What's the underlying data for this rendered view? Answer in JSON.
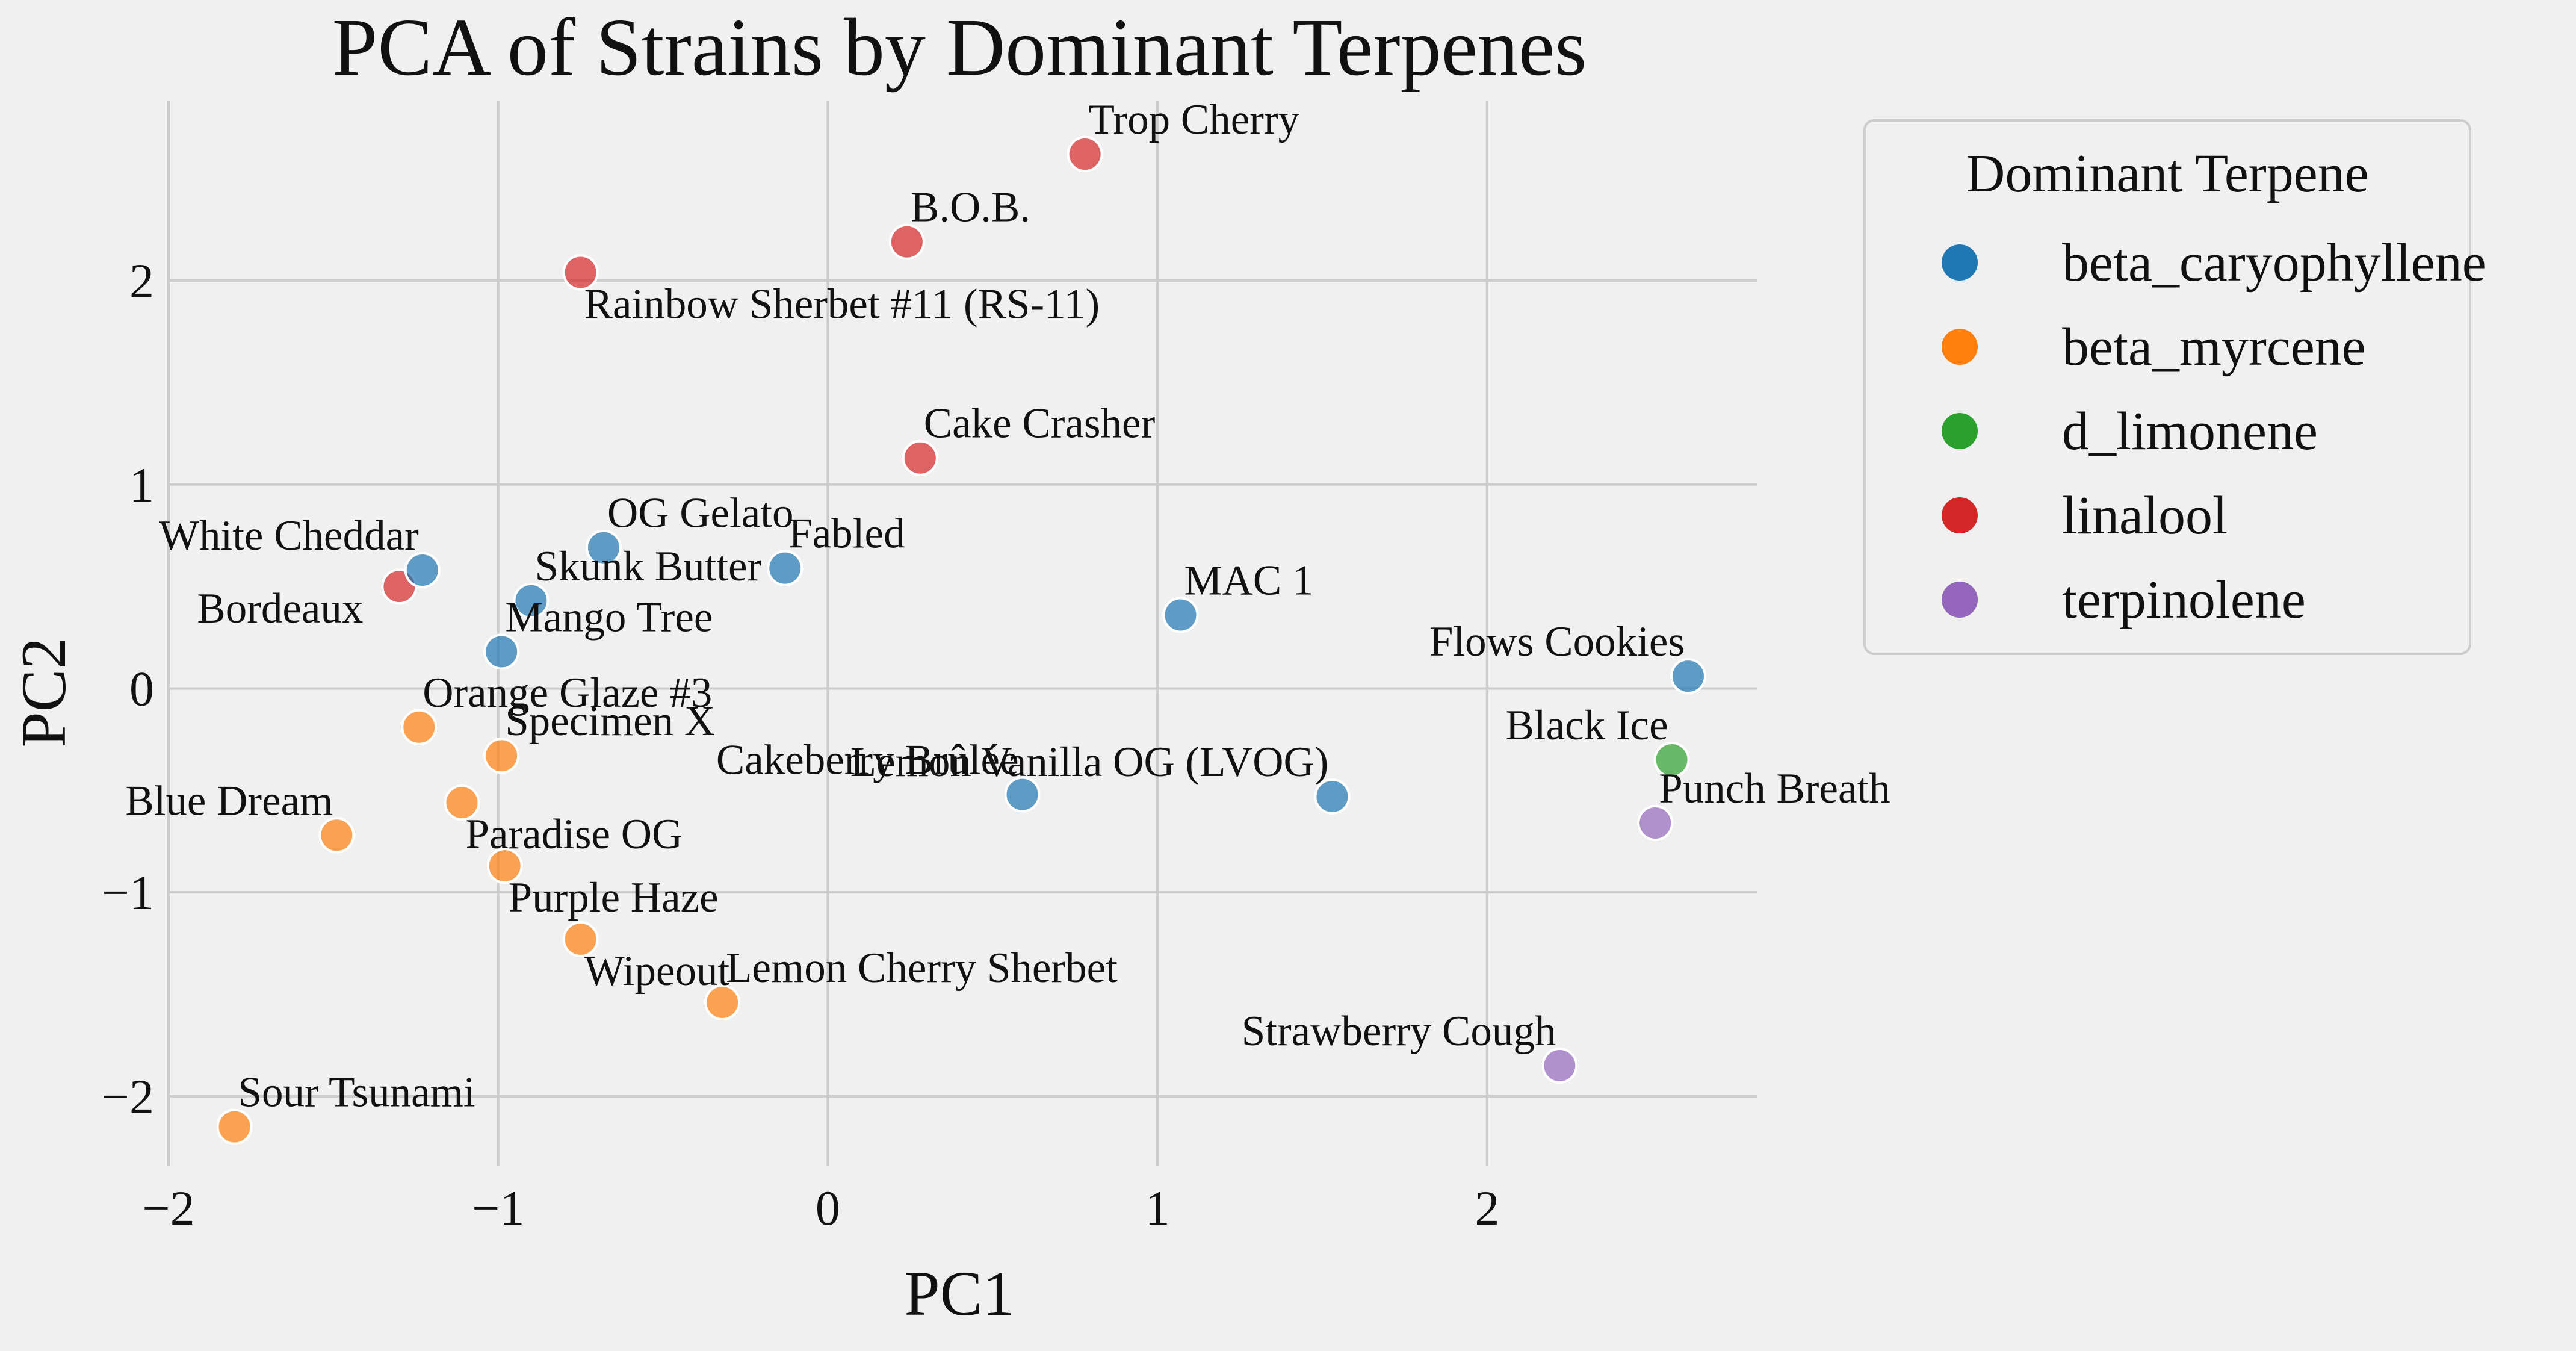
{
  "chart_data": {
    "type": "scatter",
    "title": "PCA of Strains by Dominant Terpenes",
    "xlabel": "PC1",
    "ylabel": "PC2",
    "xlim": [
      -2.0,
      2.82
    ],
    "ylim": [
      -2.34,
      2.88
    ],
    "x_ticks": [
      -2,
      -1,
      0,
      1,
      2
    ],
    "x_tick_labels": [
      "−2",
      "−1",
      "0",
      "1",
      "2"
    ],
    "y_ticks": [
      -2,
      -1,
      0,
      1,
      2
    ],
    "y_tick_labels": [
      "−2",
      "−1",
      "0",
      "1",
      "2"
    ],
    "grid": true,
    "legend": {
      "title": "Dominant Terpene",
      "placement": "outside-right-top",
      "entries": [
        {
          "name": "beta_caryophyllene",
          "color": "#1f77b4"
        },
        {
          "name": "beta_myrcene",
          "color": "#ff7f0e"
        },
        {
          "name": "d_limonene",
          "color": "#2ca02c"
        },
        {
          "name": "linalool",
          "color": "#d62728"
        },
        {
          "name": "terpinolene",
          "color": "#9467bd"
        }
      ]
    },
    "points": [
      {
        "label": "Trop Cherry",
        "x": 0.78,
        "y": 2.62,
        "group": "linalool",
        "label_pos": "above-right"
      },
      {
        "label": "B.O.B.",
        "x": 0.24,
        "y": 2.19,
        "group": "linalool",
        "label_pos": "above-right"
      },
      {
        "label": "Rainbow Sherbet #11 (RS-11)",
        "x": -0.75,
        "y": 2.04,
        "group": "linalool",
        "label_pos": "below-right"
      },
      {
        "label": "Cake Crasher",
        "x": 0.28,
        "y": 1.13,
        "group": "linalool",
        "label_pos": "above-right"
      },
      {
        "label": "Bordeaux",
        "x": -1.3,
        "y": 0.5,
        "group": "linalool",
        "label_pos": "below-left"
      },
      {
        "label": "White Cheddar",
        "x": -1.23,
        "y": 0.58,
        "group": "beta_caryophyllene",
        "label_pos": "above-left"
      },
      {
        "label": "OG Gelato",
        "x": -0.68,
        "y": 0.69,
        "group": "beta_caryophyllene",
        "label_pos": "above-right"
      },
      {
        "label": "Fabled",
        "x": -0.13,
        "y": 0.59,
        "group": "beta_caryophyllene",
        "label_pos": "above-right"
      },
      {
        "label": "Skunk Butter",
        "x": -0.9,
        "y": 0.43,
        "group": "beta_caryophyllene",
        "label_pos": "above-right"
      },
      {
        "label": "Mango Tree",
        "x": -0.99,
        "y": 0.18,
        "group": "beta_caryophyllene",
        "label_pos": "above-right"
      },
      {
        "label": "MAC 1",
        "x": 1.07,
        "y": 0.36,
        "group": "beta_caryophyllene",
        "label_pos": "above-right"
      },
      {
        "label": "Flows Cookies",
        "x": 2.61,
        "y": 0.06,
        "group": "beta_caryophyllene",
        "label_pos": "above-left"
      },
      {
        "label": "Cakeberry Brûlée",
        "x": 0.59,
        "y": -0.52,
        "group": "beta_caryophyllene",
        "label_pos": "above-left"
      },
      {
        "label": "Lemon Vanilla OG (LVOG)",
        "x": 1.53,
        "y": -0.53,
        "group": "beta_caryophyllene",
        "label_pos": "above-left"
      },
      {
        "label": "Black Ice",
        "x": 2.56,
        "y": -0.35,
        "group": "d_limonene",
        "label_pos": "above-left"
      },
      {
        "label": "Punch Breath",
        "x": 2.51,
        "y": -0.66,
        "group": "terpinolene",
        "label_pos": "above-right"
      },
      {
        "label": "Strawberry Cough",
        "x": 2.22,
        "y": -1.85,
        "group": "terpinolene",
        "label_pos": "above-left"
      },
      {
        "label": "Orange Glaze #3",
        "x": -1.24,
        "y": -0.19,
        "group": "beta_myrcene",
        "label_pos": "above-right"
      },
      {
        "label": "Specimen X",
        "x": -0.99,
        "y": -0.33,
        "group": "beta_myrcene",
        "label_pos": "above-right"
      },
      {
        "label": "Paradise OG",
        "x": -1.11,
        "y": -0.56,
        "group": "beta_myrcene",
        "label_pos": "below-right"
      },
      {
        "label": "Blue Dream",
        "x": -1.49,
        "y": -0.72,
        "group": "beta_myrcene",
        "label_pos": "above-left"
      },
      {
        "label": "Purple Haze",
        "x": -0.98,
        "y": -0.87,
        "group": "beta_myrcene",
        "label_pos": "below-right"
      },
      {
        "label": "Wipeout",
        "x": -0.75,
        "y": -1.23,
        "group": "beta_myrcene",
        "label_pos": "below-right"
      },
      {
        "label": "Lemon Cherry Sherbet",
        "x": -0.32,
        "y": -1.54,
        "group": "beta_myrcene",
        "label_pos": "above-right"
      },
      {
        "label": "Sour Tsunami",
        "x": -1.8,
        "y": -2.15,
        "group": "beta_myrcene",
        "label_pos": "above-right"
      }
    ]
  }
}
